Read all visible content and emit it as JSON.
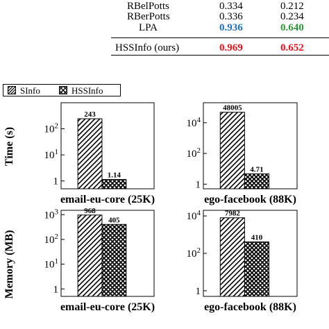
{
  "table": {
    "rows": [
      {
        "method": "RBelPotts",
        "v1": "0.334",
        "v2": "0.212"
      },
      {
        "method": "RBerPotts",
        "v1": "0.336",
        "v2": "0.234"
      },
      {
        "method": "LPA",
        "v1": "0.936",
        "v2": "0.640",
        "v1_color": "#1f6fc0",
        "v2_color": "#2f9a3a"
      },
      {
        "method": "HSSInfo (ours)",
        "v1": "0.969",
        "v2": "0.652",
        "v1_color": "#e8141e",
        "v2_color": "#e8141e"
      }
    ]
  },
  "legend": {
    "items": [
      {
        "label": "SInfo",
        "pattern": "diagonal-hatch"
      },
      {
        "label": "HSSInfo",
        "pattern": "crosshatch"
      }
    ]
  },
  "chart_data": [
    {
      "type": "bar",
      "row_label": "Time (s)",
      "categories": [
        "SInfo",
        "HSSInfo"
      ],
      "values": [
        243,
        1.14
      ],
      "value_labels": [
        "243",
        "1.14"
      ],
      "xlabel": "email-eu-core (25K)",
      "scale": "log",
      "ylim": [
        0.5,
        1000
      ],
      "ytick_values": [
        1,
        10,
        100
      ],
      "ytick_base": [
        "1",
        "10",
        "10"
      ],
      "ytick_exp": [
        "",
        "1",
        "2"
      ]
    },
    {
      "type": "bar",
      "categories": [
        "SInfo",
        "HSSInfo"
      ],
      "values": [
        48005,
        4.71
      ],
      "value_labels": [
        "48005",
        "4.71"
      ],
      "xlabel": "ego-facebook (88K)",
      "scale": "log",
      "ylim": [
        0.5,
        200000
      ],
      "ytick_values": [
        1,
        100,
        10000
      ],
      "ytick_base": [
        "1",
        "10",
        "10"
      ],
      "ytick_exp": [
        "",
        "2",
        "4"
      ]
    },
    {
      "type": "bar",
      "row_label": "Memory (MB)",
      "categories": [
        "SInfo",
        "HSSInfo"
      ],
      "values": [
        968,
        405
      ],
      "value_labels": [
        "968",
        "405"
      ],
      "xlabel": "email-eu-core (25K)",
      "scale": "log",
      "ylim": [
        0.5,
        1500
      ],
      "ytick_values": [
        1,
        10,
        100,
        1000
      ],
      "ytick_base": [
        "1",
        "10",
        "10",
        "10"
      ],
      "ytick_exp": [
        "",
        "1",
        "2",
        "3"
      ]
    },
    {
      "type": "bar",
      "categories": [
        "SInfo",
        "HSSInfo"
      ],
      "values": [
        7982,
        410
      ],
      "value_labels": [
        "7982",
        "410"
      ],
      "xlabel": "ego-facebook (88K)",
      "scale": "log",
      "ylim": [
        0.5,
        20000
      ],
      "ytick_values": [
        1,
        100,
        10000
      ],
      "ytick_base": [
        "1",
        "10",
        "10"
      ],
      "ytick_exp": [
        "",
        "2",
        "4"
      ]
    }
  ]
}
